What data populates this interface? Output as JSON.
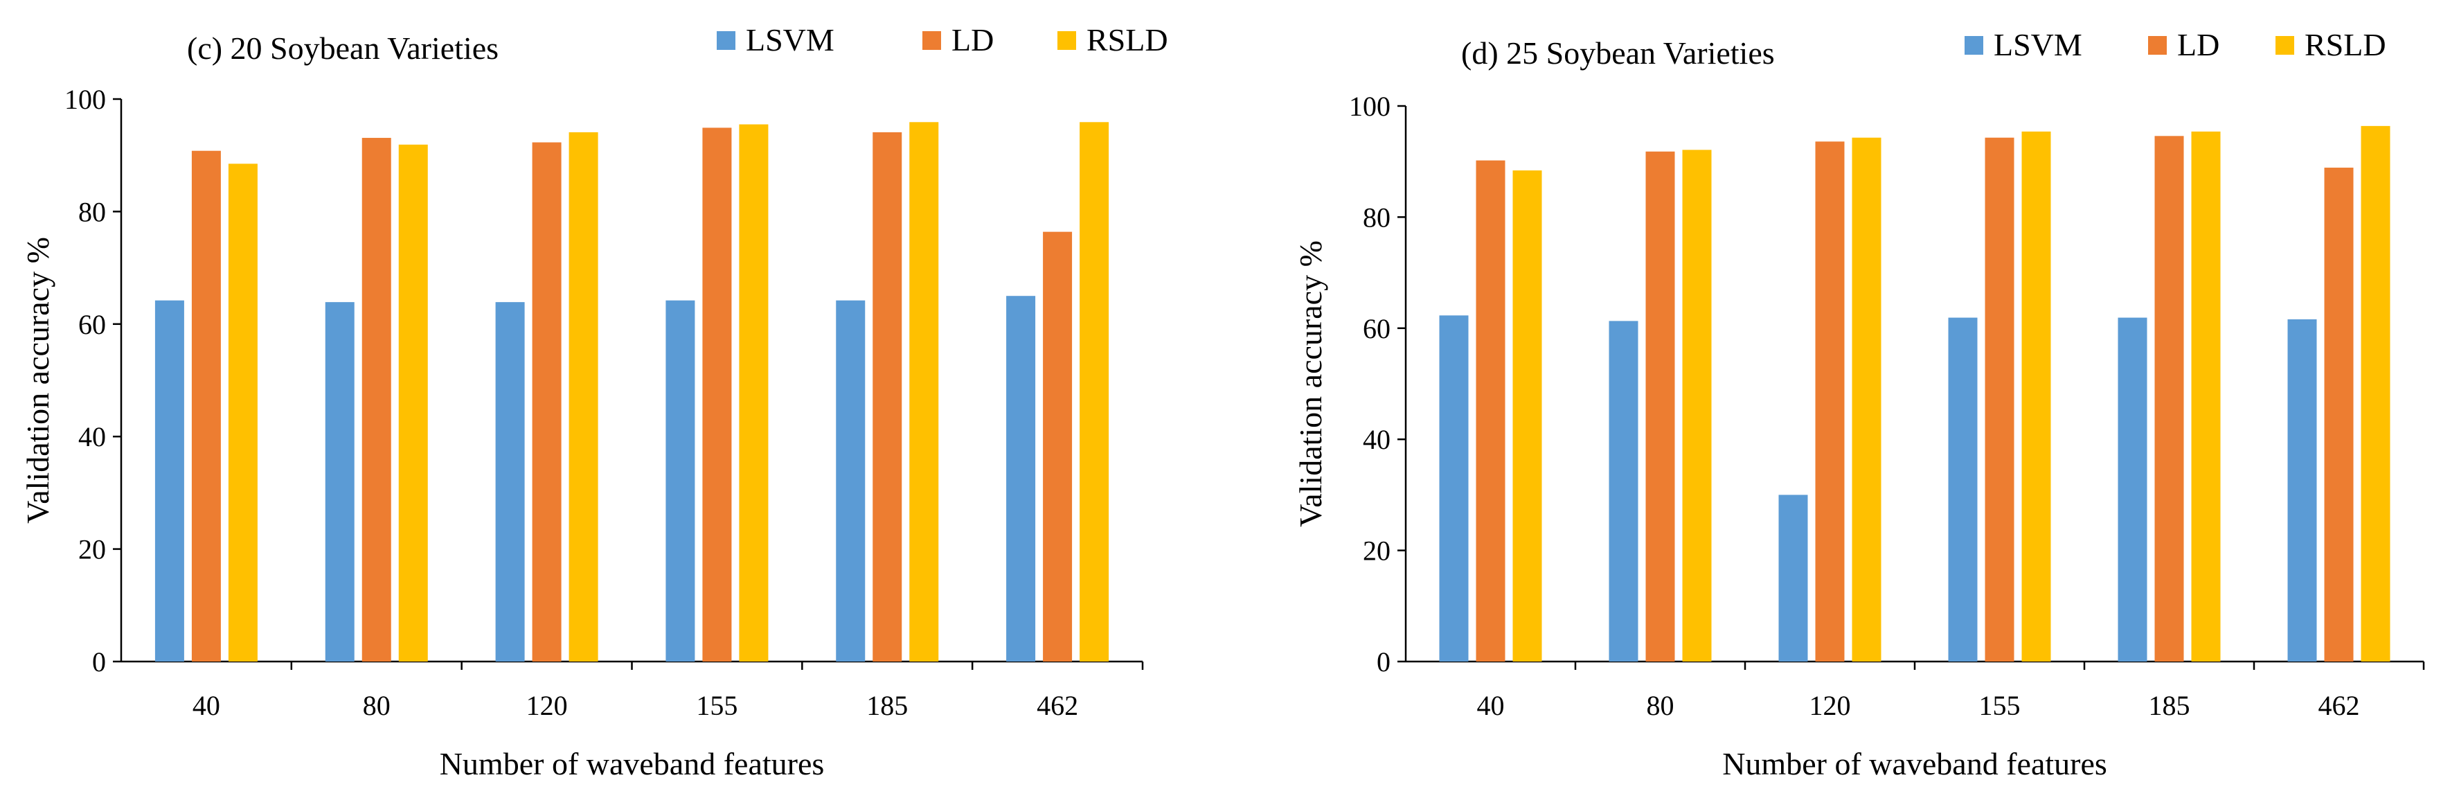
{
  "chart_data": [
    {
      "type": "bar",
      "title": "(c) 20 Soybean Varieties",
      "xlabel": "Number of waveband features",
      "ylabel": "Validation accuracy %",
      "ylim": [
        0,
        100
      ],
      "yticks": [
        0,
        20,
        40,
        60,
        80,
        100
      ],
      "categories": [
        "40",
        "80",
        "120",
        "155",
        "185",
        "462"
      ],
      "legend_position": "top",
      "grid": false,
      "series": [
        {
          "name": "LSVM",
          "color": "#5B9BD5",
          "values": [
            64.2,
            63.9,
            63.9,
            64.2,
            64.2,
            65.0
          ]
        },
        {
          "name": "LD",
          "color": "#ED7D31",
          "values": [
            90.8,
            93.1,
            92.3,
            94.9,
            94.1,
            76.4
          ]
        },
        {
          "name": "RSLD",
          "color": "#FFC000",
          "values": [
            88.5,
            91.9,
            94.1,
            95.5,
            95.9,
            95.9
          ]
        }
      ]
    },
    {
      "type": "bar",
      "title": "(d) 25 Soybean Varieties",
      "xlabel": "Number of waveband features",
      "ylabel": "Validation accuracy %",
      "ylim": [
        0,
        100
      ],
      "yticks": [
        0,
        20,
        40,
        60,
        80,
        100
      ],
      "categories": [
        "40",
        "80",
        "120",
        "155",
        "185",
        "462"
      ],
      "legend_position": "top",
      "grid": false,
      "series": [
        {
          "name": "LSVM",
          "color": "#5B9BD5",
          "values": [
            62.3,
            61.3,
            30.0,
            61.9,
            61.9,
            61.6
          ]
        },
        {
          "name": "LD",
          "color": "#ED7D31",
          "values": [
            90.2,
            91.8,
            93.6,
            94.3,
            94.6,
            88.9
          ]
        },
        {
          "name": "RSLD",
          "color": "#FFC000",
          "values": [
            88.4,
            92.1,
            94.3,
            95.4,
            95.4,
            96.4
          ]
        }
      ]
    }
  ]
}
